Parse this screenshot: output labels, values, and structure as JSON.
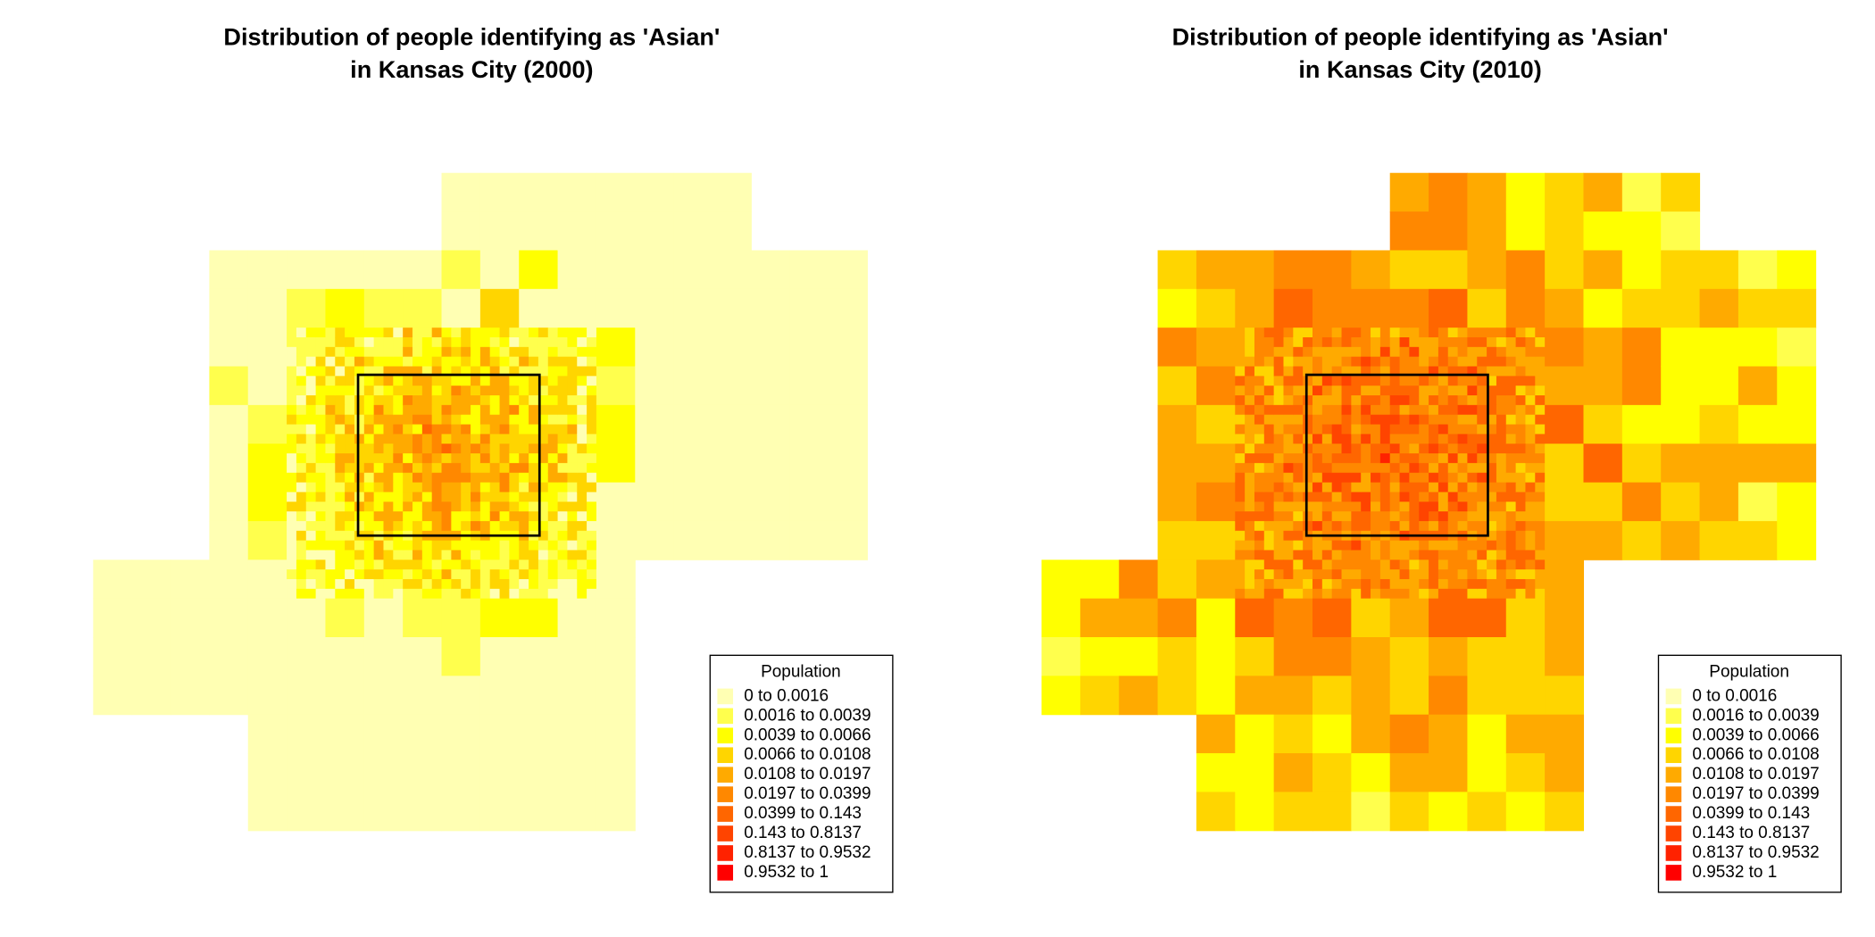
{
  "maps": [
    {
      "title_lines": [
        "Distribution of people identifying as 'Asian'",
        "in Kansas City (2000)"
      ],
      "legend": {
        "title": "Population",
        "classes": [
          {
            "label": "0 to 0.0016",
            "color": "#FFFFB3"
          },
          {
            "label": "0.0016 to 0.0039",
            "color": "#FFFF4D"
          },
          {
            "label": "0.0039 to 0.0066",
            "color": "#FFFF00"
          },
          {
            "label": "0.0066 to 0.0108",
            "color": "#FFD500"
          },
          {
            "label": "0.0108 to 0.0197",
            "color": "#FFAA00"
          },
          {
            "label": "0.0197 to 0.0399",
            "color": "#FF8800"
          },
          {
            "label": "0.0399 to 0.143",
            "color": "#FF6600"
          },
          {
            "label": "0.143 to 0.8137",
            "color": "#FF4400"
          },
          {
            "label": "0.8137 to 0.9532",
            "color": "#FF2200"
          },
          {
            "label": "0.9532 to 1",
            "color": "#FF0000"
          }
        ]
      }
    },
    {
      "title_lines": [
        "Distribution of people identifying as 'Asian'",
        "in Kansas City (2010)"
      ],
      "legend": {
        "title": "Population",
        "classes": [
          {
            "label": "0 to 0.0016",
            "color": "#FFFFB3"
          },
          {
            "label": "0.0016 to 0.0039",
            "color": "#FFFF4D"
          },
          {
            "label": "0.0039 to 0.0066",
            "color": "#FFFF00"
          },
          {
            "label": "0.0066 to 0.0108",
            "color": "#FFD500"
          },
          {
            "label": "0.0108 to 0.0197",
            "color": "#FFAA00"
          },
          {
            "label": "0.0197 to 0.0399",
            "color": "#FF8800"
          },
          {
            "label": "0.0399 to 0.143",
            "color": "#FF6600"
          },
          {
            "label": "0.143 to 0.8137",
            "color": "#FF4400"
          },
          {
            "label": "0.8137 to 0.9532",
            "color": "#FF2200"
          },
          {
            "label": "0.9532 to 1",
            "color": "#FF0000"
          }
        ]
      }
    }
  ]
}
